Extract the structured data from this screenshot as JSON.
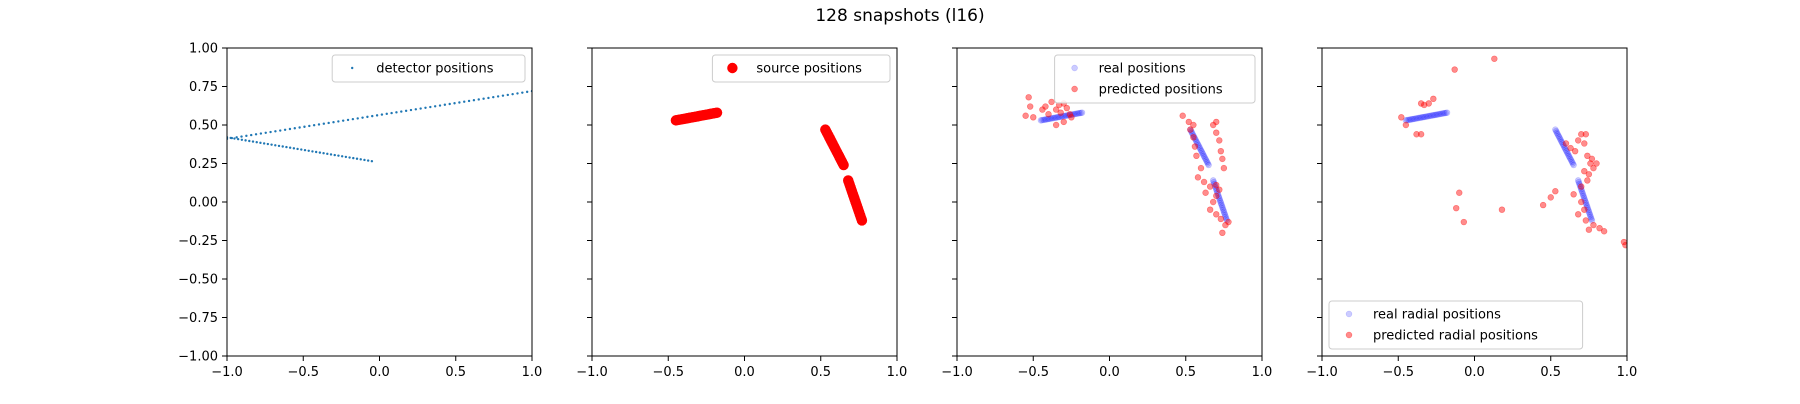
{
  "figure": {
    "title": "128 snapshots (l16)"
  },
  "chart_data": [
    {
      "type": "scatter",
      "title": "",
      "xlabel": "",
      "ylabel": "",
      "xlim": [
        -1,
        1
      ],
      "ylim": [
        -1,
        1
      ],
      "xticks": [
        "−1.0",
        "−0.5",
        "0.0",
        "0.5",
        "1.0"
      ],
      "yticks": [
        "1.00",
        "0.75",
        "0.50",
        "0.25",
        "0.00",
        "−0.25",
        "−0.50",
        "−0.75",
        "−1.00"
      ],
      "show_yticklabels": true,
      "legend_position": "top-right",
      "series": [
        {
          "name": "detector positions",
          "color": "#1f77b4",
          "marker": "small-dot",
          "lines": [
            {
              "from": [
                -1.0,
                0.41
              ],
              "to": [
                1.0,
                0.72
              ],
              "n": 64
            },
            {
              "from": [
                -1.0,
                0.42
              ],
              "to": [
                -0.05,
                0.265
              ],
              "n": 40
            }
          ]
        }
      ]
    },
    {
      "type": "scatter",
      "title": "",
      "xlabel": "",
      "ylabel": "",
      "xlim": [
        -1,
        1
      ],
      "ylim": [
        -1,
        1
      ],
      "xticks": [
        "−1.0",
        "−0.5",
        "0.0",
        "0.5",
        "1.0"
      ],
      "yticks": [],
      "show_yticklabels": false,
      "legend_position": "top-right",
      "series": [
        {
          "name": "source positions",
          "color": "#ff0000",
          "marker": "large-dot",
          "lines": [
            {
              "from": [
                -0.45,
                0.53
              ],
              "to": [
                -0.18,
                0.58
              ],
              "n": 30
            },
            {
              "from": [
                0.53,
                0.47
              ],
              "to": [
                0.65,
                0.24
              ],
              "n": 24
            },
            {
              "from": [
                0.68,
                0.14
              ],
              "to": [
                0.77,
                -0.12
              ],
              "n": 24
            }
          ]
        }
      ]
    },
    {
      "type": "scatter",
      "title": "",
      "xlabel": "",
      "ylabel": "",
      "xlim": [
        -1,
        1
      ],
      "ylim": [
        -1,
        1
      ],
      "xticks": [
        "−1.0",
        "−0.5",
        "0.0",
        "0.5",
        "1.0"
      ],
      "yticks": [],
      "show_yticklabels": false,
      "legend_position": "top-right",
      "series": [
        {
          "name": "real positions",
          "color": "#0000ff",
          "alpha": 0.2,
          "lines": [
            {
              "from": [
                -0.45,
                0.53
              ],
              "to": [
                -0.18,
                0.58
              ],
              "n": 30
            },
            {
              "from": [
                0.53,
                0.47
              ],
              "to": [
                0.65,
                0.24
              ],
              "n": 24
            },
            {
              "from": [
                0.68,
                0.14
              ],
              "to": [
                0.77,
                -0.12
              ],
              "n": 24
            }
          ]
        },
        {
          "name": "predicted positions",
          "color": "#ff0000",
          "alpha": 0.45,
          "points": [
            [
              -0.53,
              0.68
            ],
            [
              -0.52,
              0.62
            ],
            [
              -0.55,
              0.56
            ],
            [
              -0.5,
              0.55
            ],
            [
              -0.42,
              0.62
            ],
            [
              -0.38,
              0.65
            ],
            [
              -0.35,
              0.6
            ],
            [
              -0.33,
              0.63
            ],
            [
              -0.3,
              0.64
            ],
            [
              -0.28,
              0.61
            ],
            [
              -0.26,
              0.57
            ],
            [
              -0.3,
              0.52
            ],
            [
              -0.35,
              0.5
            ],
            [
              -0.4,
              0.57
            ],
            [
              -0.32,
              0.58
            ],
            [
              -0.25,
              0.55
            ],
            [
              -0.44,
              0.6
            ],
            [
              0.48,
              0.56
            ],
            [
              0.52,
              0.52
            ],
            [
              0.53,
              0.47
            ],
            [
              0.55,
              0.42
            ],
            [
              0.56,
              0.36
            ],
            [
              0.57,
              0.3
            ],
            [
              0.6,
              0.22
            ],
            [
              0.58,
              0.16
            ],
            [
              0.62,
              0.13
            ],
            [
              0.66,
              0.1
            ],
            [
              0.7,
              0.11
            ],
            [
              0.72,
              0.08
            ],
            [
              0.68,
              0.5
            ],
            [
              0.7,
              0.45
            ],
            [
              0.72,
              0.4
            ],
            [
              0.73,
              0.33
            ],
            [
              0.74,
              0.28
            ],
            [
              0.75,
              0.22
            ],
            [
              0.7,
              0.04
            ],
            [
              0.68,
              0.0
            ],
            [
              0.66,
              -0.05
            ],
            [
              0.7,
              -0.08
            ],
            [
              0.73,
              -0.11
            ],
            [
              0.76,
              -0.15
            ],
            [
              0.74,
              -0.2
            ],
            [
              0.78,
              -0.13
            ],
            [
              0.63,
              0.06
            ],
            [
              0.7,
              0.52
            ],
            [
              0.55,
              0.5
            ]
          ]
        }
      ]
    },
    {
      "type": "scatter",
      "title": "",
      "xlabel": "",
      "ylabel": "",
      "xlim": [
        -1,
        1
      ],
      "ylim": [
        -1,
        1
      ],
      "xticks": [
        "−1.0",
        "−0.5",
        "0.0",
        "0.5",
        "1.0"
      ],
      "yticks": [],
      "show_yticklabels": false,
      "legend_position": "bottom-left",
      "series": [
        {
          "name": "real radial positions",
          "color": "#0000ff",
          "alpha": 0.2,
          "lines": [
            {
              "from": [
                -0.45,
                0.53
              ],
              "to": [
                -0.18,
                0.58
              ],
              "n": 30
            },
            {
              "from": [
                0.53,
                0.47
              ],
              "to": [
                0.65,
                0.24
              ],
              "n": 24
            },
            {
              "from": [
                0.68,
                0.14
              ],
              "to": [
                0.77,
                -0.12
              ],
              "n": 24
            }
          ]
        },
        {
          "name": "predicted radial positions",
          "color": "#ff0000",
          "alpha": 0.45,
          "points": [
            [
              -0.48,
              0.55
            ],
            [
              -0.45,
              0.5
            ],
            [
              -0.35,
              0.64
            ],
            [
              -0.33,
              0.63
            ],
            [
              -0.3,
              0.64
            ],
            [
              -0.27,
              0.67
            ],
            [
              -0.38,
              0.44
            ],
            [
              -0.35,
              0.44
            ],
            [
              -0.13,
              0.86
            ],
            [
              0.13,
              0.93
            ],
            [
              -0.1,
              0.06
            ],
            [
              -0.12,
              -0.04
            ],
            [
              -0.07,
              -0.13
            ],
            [
              0.18,
              -0.05
            ],
            [
              0.45,
              -0.02
            ],
            [
              0.5,
              0.03
            ],
            [
              0.53,
              0.07
            ],
            [
              0.6,
              0.38
            ],
            [
              0.63,
              0.35
            ],
            [
              0.66,
              0.33
            ],
            [
              0.68,
              0.4
            ],
            [
              0.7,
              0.44
            ],
            [
              0.72,
              0.38
            ],
            [
              0.74,
              0.3
            ],
            [
              0.76,
              0.25
            ],
            [
              0.72,
              0.2
            ],
            [
              0.75,
              0.18
            ],
            [
              0.78,
              0.22
            ],
            [
              0.74,
              0.14
            ],
            [
              0.7,
              0.1
            ],
            [
              0.65,
              0.05
            ],
            [
              0.7,
              0.0
            ],
            [
              0.72,
              -0.05
            ],
            [
              0.68,
              -0.08
            ],
            [
              0.73,
              -0.12
            ],
            [
              0.78,
              -0.15
            ],
            [
              0.82,
              -0.17
            ],
            [
              0.85,
              -0.19
            ],
            [
              0.75,
              -0.18
            ],
            [
              0.98,
              -0.26
            ],
            [
              0.99,
              -0.28
            ],
            [
              0.8,
              0.25
            ],
            [
              0.77,
              0.28
            ],
            [
              0.73,
              0.44
            ]
          ]
        }
      ]
    }
  ]
}
